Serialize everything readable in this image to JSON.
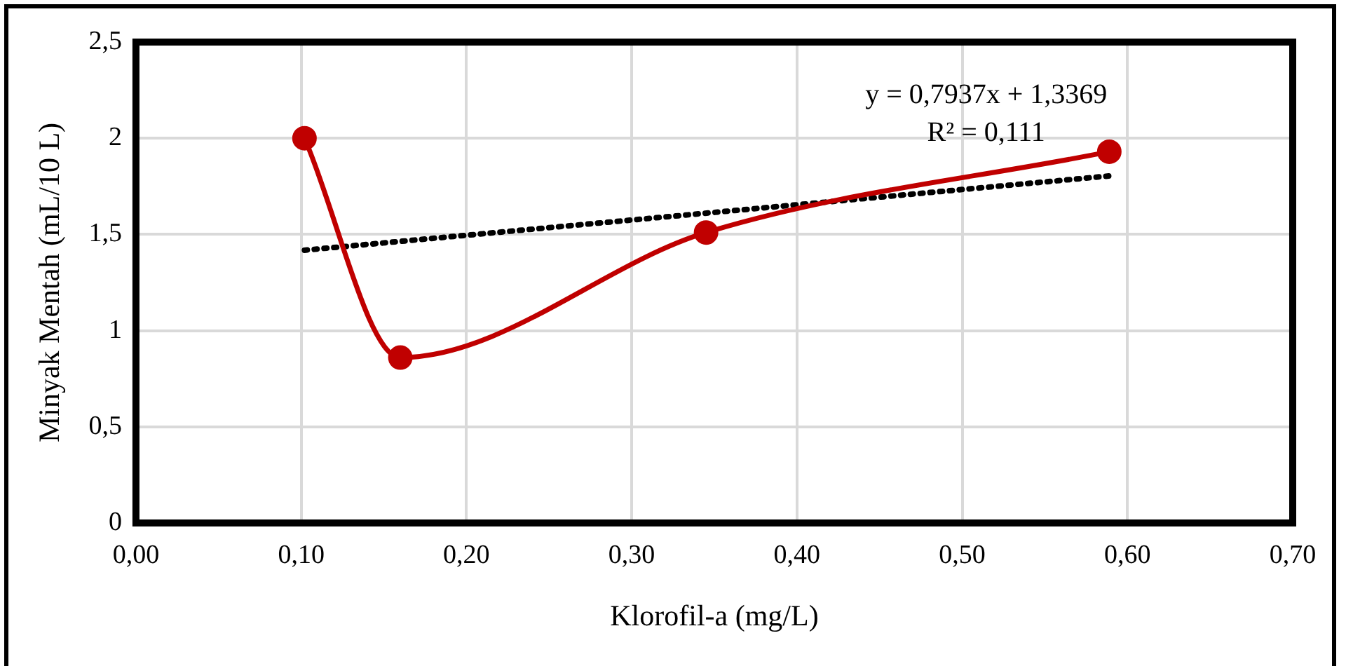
{
  "chart_data": {
    "type": "line",
    "xlabel": "Klorofil-a (mg/L)",
    "ylabel": "Minyak Mentah (mL/10 L)",
    "series": [
      {
        "color": "#c00000",
        "x": [
          0.102,
          0.16,
          0.345,
          0.589
        ],
        "values": [
          2.0,
          0.86,
          1.51,
          1.93
        ],
        "marker": "circle",
        "line_style": "solid"
      },
      {
        "color": "#000000",
        "x": [
          0.102,
          0.589
        ],
        "values": [
          1.418,
          1.804
        ],
        "marker": "none",
        "line_style": "dotted"
      }
    ],
    "annotations": [
      "y = 0,7937x + 1,3369",
      "R² = 0,111"
    ],
    "xlim": [
      0,
      0.7
    ],
    "xticks": [
      {
        "value": 0,
        "label": "0,00"
      },
      {
        "value": 0.1,
        "label": "0,10"
      },
      {
        "value": 0.2,
        "label": "0,20"
      },
      {
        "value": 0.3,
        "label": "0,30"
      },
      {
        "value": 0.4,
        "label": "0,40"
      },
      {
        "value": 0.5,
        "label": "0,50"
      },
      {
        "value": 0.6,
        "label": "0,60"
      },
      {
        "value": 0.7,
        "label": "0,70"
      }
    ],
    "ylim": [
      0,
      2.5
    ],
    "yticks": [
      0,
      {
        "value": 0.5,
        "label": "0,5"
      },
      1,
      {
        "value": 1.5,
        "label": "1,5"
      },
      2,
      {
        "value": 2.5,
        "label": "2,5"
      }
    ],
    "grid": true,
    "legend": false
  }
}
